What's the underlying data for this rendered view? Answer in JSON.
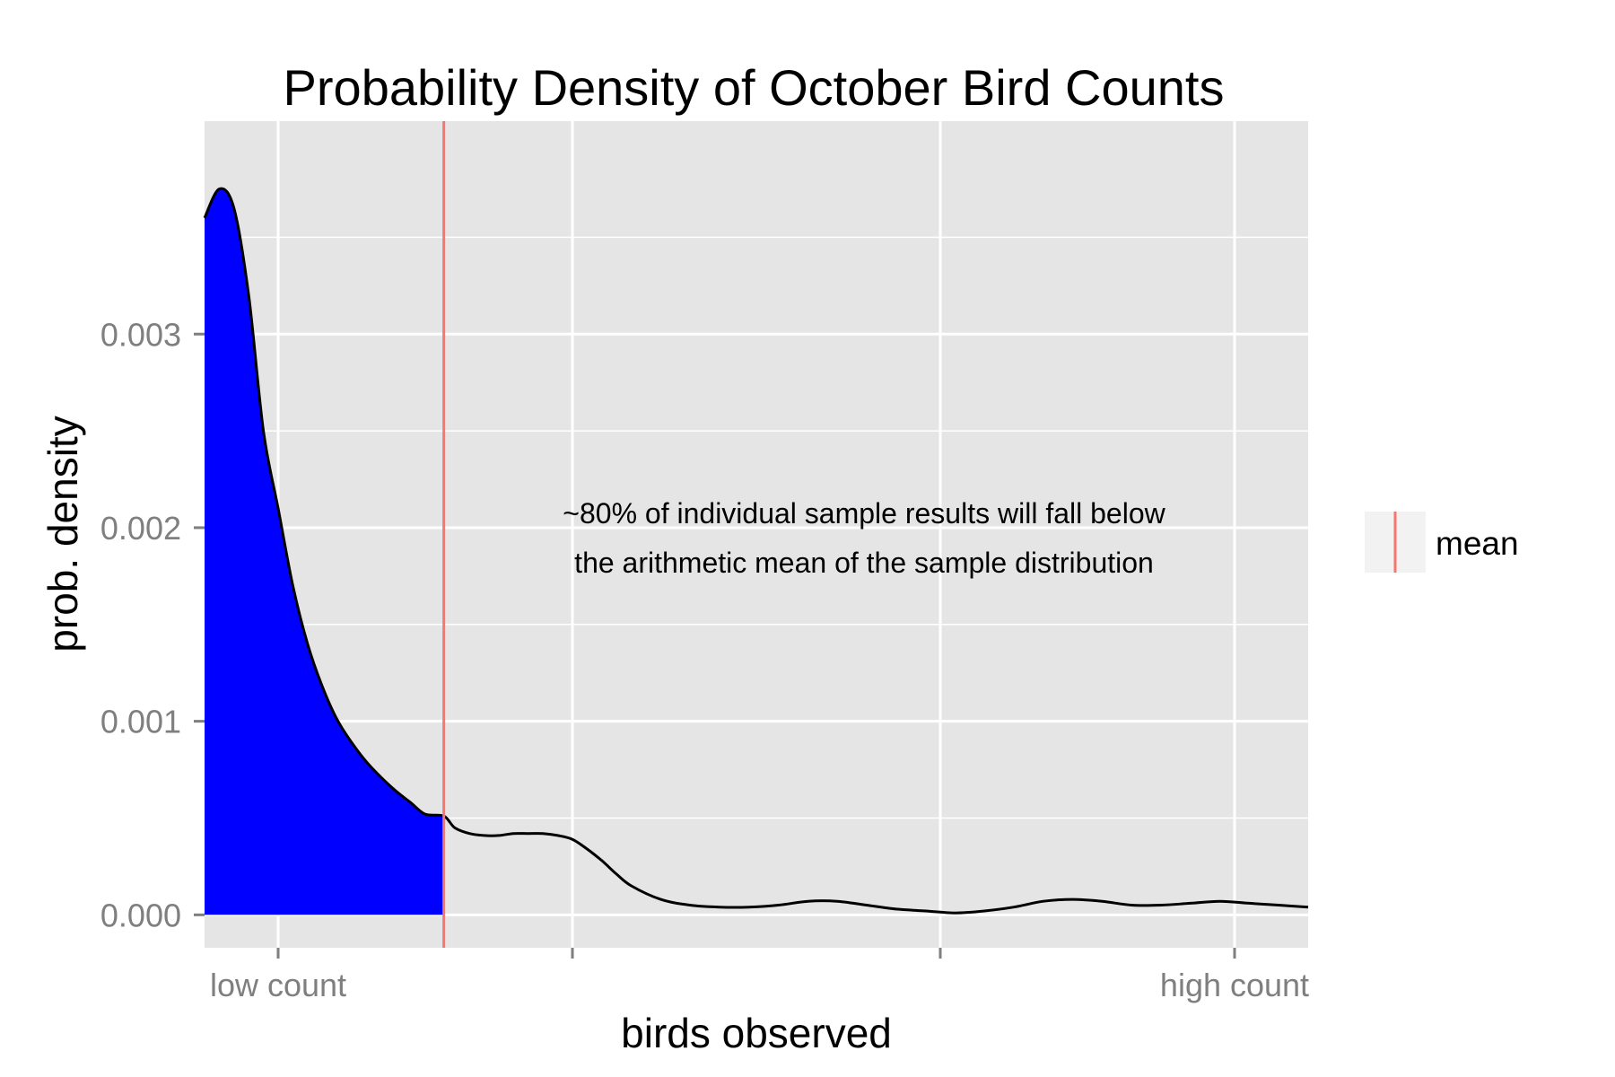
{
  "chart_data": {
    "type": "area",
    "title": "Probability Density of October Bird Counts",
    "xlabel": "birds observed",
    "ylabel": "prob. density",
    "xlim": [
      -0.25,
      3.5
    ],
    "ylim": [
      -0.00017,
      0.0041
    ],
    "x_ticks": [
      {
        "value": 0,
        "label": "low count"
      },
      {
        "value": 1,
        "label": ""
      },
      {
        "value": 2.25,
        "label": ""
      },
      {
        "value": 3.25,
        "label": "high count"
      }
    ],
    "y_ticks": [
      {
        "value": 0.0,
        "label": "0.000"
      },
      {
        "value": 0.001,
        "label": "0.001"
      },
      {
        "value": 0.002,
        "label": "0.002"
      },
      {
        "value": 0.003,
        "label": "0.003"
      }
    ],
    "grid": true,
    "mean": 0.563,
    "shaded_region": {
      "from": -0.25,
      "to": 0.563,
      "color": "#0000ff"
    },
    "density_curve": {
      "x": [
        -0.25,
        -0.2,
        -0.15,
        -0.1,
        -0.05,
        0.0,
        0.05,
        0.1,
        0.15,
        0.2,
        0.25,
        0.3,
        0.35,
        0.4,
        0.45,
        0.5,
        0.563,
        0.6,
        0.65,
        0.7,
        0.75,
        0.8,
        0.85,
        0.9,
        0.95,
        1.0,
        1.05,
        1.1,
        1.15,
        1.2,
        1.3,
        1.4,
        1.5,
        1.6,
        1.7,
        1.8,
        1.9,
        2.0,
        2.1,
        2.2,
        2.3,
        2.4,
        2.5,
        2.6,
        2.7,
        2.8,
        2.9,
        3.0,
        3.1,
        3.2,
        3.3,
        3.4,
        3.5
      ],
      "y": [
        0.0036,
        0.00375,
        0.00365,
        0.0032,
        0.0025,
        0.0021,
        0.0017,
        0.0014,
        0.00118,
        0.00101,
        0.00089,
        0.00079,
        0.00071,
        0.00064,
        0.00058,
        0.00052,
        0.00051,
        0.00045,
        0.00042,
        0.00041,
        0.00041,
        0.00042,
        0.00042,
        0.00042,
        0.00041,
        0.00039,
        0.00034,
        0.00028,
        0.00021,
        0.00015,
        8e-05,
        5e-05,
        4e-05,
        4e-05,
        5e-05,
        7e-05,
        7e-05,
        5e-05,
        3e-05,
        2e-05,
        1e-05,
        2e-05,
        4e-05,
        7e-05,
        8e-05,
        7e-05,
        5e-05,
        5e-05,
        6e-05,
        7e-05,
        6e-05,
        5e-05,
        4e-05
      ]
    },
    "annotation": {
      "lines": [
        "~80% of individual sample results will fall below",
        "the arithmetic mean of the sample distribution"
      ]
    },
    "legend": {
      "placement": "right",
      "entries": [
        {
          "name": "mean",
          "color": "#f8766d"
        }
      ]
    },
    "colors": {
      "panel_bg": "#e5e5e5",
      "grid": "#ffffff",
      "fill": "#0000ff",
      "curve": "#000000",
      "mean_line": "#f8766d",
      "legend_key_bg": "#f2f2f2",
      "tick_text": "#7f7f7f"
    }
  }
}
